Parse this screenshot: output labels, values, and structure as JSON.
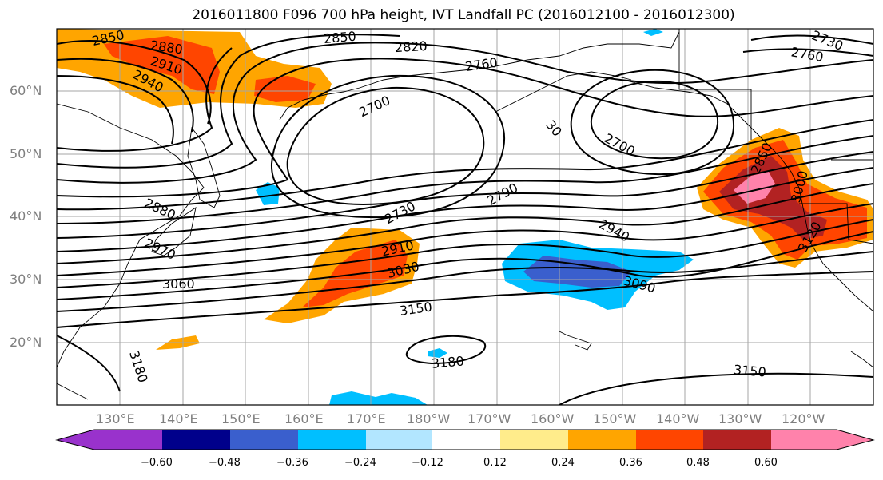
{
  "title": "2016011800 F096 700 hPa height, IVT Landfall PC (2016012100 - 2016012300)",
  "lat_labels": [
    "60°N",
    "50°N",
    "40°N",
    "30°N",
    "20°N"
  ],
  "lon_labels": [
    "130°E",
    "140°E",
    "150°E",
    "160°E",
    "170°E",
    "180°W",
    "170°W",
    "160°W",
    "150°W",
    "140°W",
    "130°W",
    "120°W"
  ],
  "contour_labels": {
    "c1": "2850",
    "c2": "2880",
    "c3": "2910",
    "c4": "2940",
    "c5": "2850",
    "c6": "2820",
    "c7": "2760",
    "c8": "2730",
    "c9": "2760",
    "c10": "2700",
    "c11": "2700",
    "c12": "30",
    "c13": "2790",
    "c14": "2730",
    "c15": "2880",
    "c16": "2970",
    "c17": "3060",
    "c18": "2910",
    "c19": "3030",
    "c20": "3150",
    "c21": "2940",
    "c22": "3090",
    "c23": "3180",
    "c24": "3180",
    "c25": "3150",
    "c26": "2850",
    "c27": "3000",
    "c28": "3120"
  },
  "colorbar": {
    "ticks": [
      "−0.60",
      "−0.48",
      "−0.36",
      "−0.24",
      "−0.12",
      "0.12",
      "0.24",
      "0.36",
      "0.48",
      "0.60"
    ],
    "colors": [
      "#9932cc",
      "#00008b",
      "#3a5fcd",
      "#00bfff",
      "#b2e6ff",
      "#ffffff",
      "#ffec8b",
      "#ffa500",
      "#ff4500",
      "#b22222",
      "#ff82ab"
    ]
  },
  "colors": {
    "grid": "#a6a6a6",
    "contour": "#000000",
    "tick_label": "#7f7f7f"
  }
}
